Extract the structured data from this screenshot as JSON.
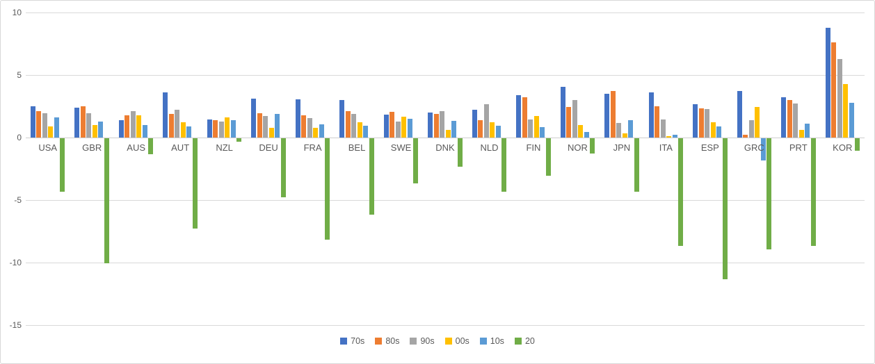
{
  "chart_data": {
    "type": "bar",
    "title": "",
    "xlabel": "",
    "ylabel": "",
    "categories": [
      "USA",
      "GBR",
      "AUS",
      "AUT",
      "NZL",
      "DEU",
      "FRA",
      "BEL",
      "SWE",
      "DNK",
      "NLD",
      "FIN",
      "NOR",
      "JPN",
      "ITA",
      "ESP",
      "GRC",
      "PRT",
      "KOR"
    ],
    "series": [
      {
        "name": "70s",
        "color": "#4472C4",
        "values": [
          2.5,
          2.4,
          1.4,
          3.6,
          1.45,
          3.1,
          3.05,
          3.0,
          1.85,
          2.0,
          2.2,
          3.4,
          4.05,
          3.5,
          3.6,
          2.65,
          3.75,
          3.2,
          8.8
        ]
      },
      {
        "name": "80s",
        "color": "#ED7D31",
        "values": [
          2.1,
          2.5,
          1.8,
          1.9,
          1.4,
          1.95,
          1.8,
          2.1,
          2.05,
          1.9,
          1.4,
          3.2,
          2.45,
          3.7,
          2.5,
          2.35,
          0.25,
          3.0,
          7.6
        ]
      },
      {
        "name": "90s",
        "color": "#A5A5A5",
        "values": [
          1.95,
          1.95,
          2.1,
          2.2,
          1.3,
          1.75,
          1.55,
          1.9,
          1.3,
          2.1,
          2.65,
          1.45,
          3.0,
          1.15,
          1.45,
          2.3,
          1.4,
          2.7,
          6.3
        ]
      },
      {
        "name": "00s",
        "color": "#FFC000",
        "values": [
          0.9,
          1.0,
          1.8,
          1.25,
          1.6,
          0.8,
          0.8,
          1.2,
          1.65,
          0.6,
          1.25,
          1.75,
          1.0,
          0.35,
          0.1,
          1.2,
          2.45,
          0.6,
          4.3
        ]
      },
      {
        "name": "10s",
        "color": "#5B9BD5",
        "values": [
          1.6,
          1.3,
          1.0,
          0.9,
          1.4,
          1.9,
          1.05,
          0.95,
          1.5,
          1.35,
          0.95,
          0.85,
          0.45,
          1.4,
          0.2,
          0.9,
          -1.8,
          1.1,
          2.8
        ]
      },
      {
        "name": "20",
        "color": "#70AD47",
        "values": [
          -4.3,
          -10.0,
          -1.3,
          -7.2,
          -0.25,
          -4.7,
          -8.1,
          -6.1,
          -3.6,
          -2.3,
          -4.3,
          -3.0,
          -1.2,
          -4.3,
          -8.6,
          -11.3,
          -8.9,
          -8.6,
          -1.0
        ]
      }
    ],
    "y_axis": {
      "ticks": [
        10,
        5,
        0,
        -5,
        -10,
        -15
      ],
      "min": -15,
      "max": 10
    },
    "grid": true,
    "legend_position": "bottom",
    "legend_labels": [
      "70s",
      "80s",
      "90s",
      "00s",
      "10s",
      "20"
    ]
  },
  "colors": {
    "background": "#FFFFFF",
    "border": "#D7D7D7",
    "gridline": "#D9D9D9",
    "axis_text": "#595959"
  }
}
